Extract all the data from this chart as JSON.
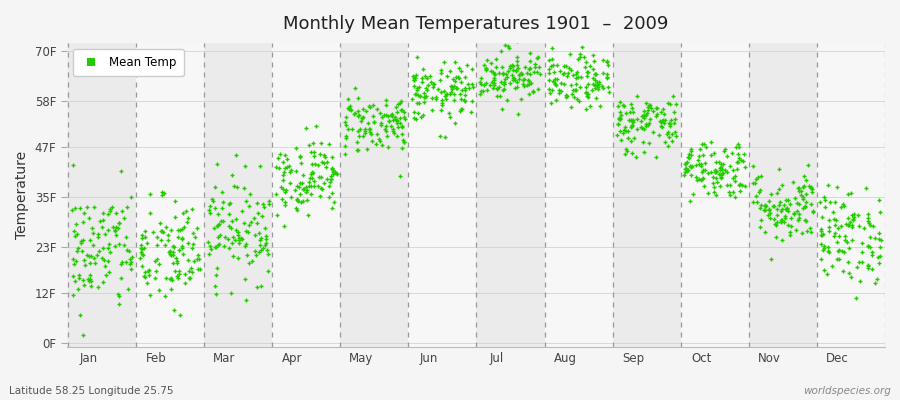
{
  "title": "Monthly Mean Temperatures 1901  –  2009",
  "ylabel": "Temperature",
  "yticks": [
    0,
    12,
    23,
    35,
    47,
    58,
    70
  ],
  "ytick_labels": [
    "0F",
    "12F",
    "23F",
    "35F",
    "47F",
    "58F",
    "70F"
  ],
  "ylim": [
    -1,
    72
  ],
  "months": [
    "Jan",
    "Feb",
    "Mar",
    "Apr",
    "May",
    "Jun",
    "Jul",
    "Aug",
    "Sep",
    "Oct",
    "Nov",
    "Dec"
  ],
  "dot_color": "#22cc00",
  "dot_size": 8,
  "fig_bg_color": "#f5f5f5",
  "plot_bg_color": "#f0f0f0",
  "band_colors": [
    "#ebebeb",
    "#f7f7f7"
  ],
  "legend_label": "Mean Temp",
  "subtitle_left": "Latitude 58.25 Longitude 25.75",
  "subtitle_right": "worldspecies.org",
  "mean_temps_C": [
    -5.5,
    -6.0,
    -2.5,
    4.5,
    11.5,
    15.5,
    18.0,
    17.0,
    11.5,
    5.5,
    0.5,
    -3.5
  ],
  "std_temps_C": [
    4.2,
    3.8,
    3.5,
    2.5,
    2.0,
    2.0,
    1.8,
    1.8,
    2.0,
    2.0,
    2.5,
    3.2
  ],
  "n_years": 109,
  "seed": 42
}
